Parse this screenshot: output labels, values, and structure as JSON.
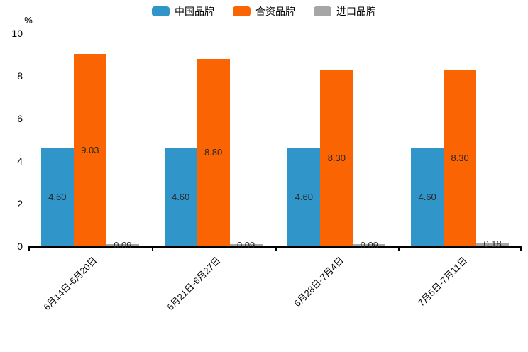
{
  "chart_data": {
    "type": "bar",
    "title": "",
    "categories": [
      "6月14日-6月20日",
      "6月21日-6月27日",
      "6月28日-7月4日",
      "7月5日-7月11日"
    ],
    "series": [
      {
        "name": "中国品牌",
        "color": "#3095c8",
        "values": [
          4.6,
          4.6,
          4.6,
          4.6
        ],
        "labels": [
          "4.60",
          "4.60",
          "4.60",
          "4.60"
        ]
      },
      {
        "name": "合资品牌",
        "color": "#fa6402",
        "values": [
          9.03,
          8.8,
          8.3,
          8.3
        ],
        "labels": [
          "9.03",
          "8.80",
          "8.30",
          "8.30"
        ]
      },
      {
        "name": "进口品牌",
        "color": "#a6a6a6",
        "values": [
          0.09,
          0.09,
          0.09,
          0.18
        ],
        "labels": [
          "0.09",
          "0.09",
          "0.09",
          "0.18"
        ]
      }
    ],
    "xlabel": "",
    "ylabel": "%",
    "yticks": [
      0,
      2,
      4,
      6,
      8,
      10
    ],
    "ylim": [
      0,
      10
    ],
    "grid": false,
    "legend_position": "top",
    "bar_label_position": "inside-center",
    "value_label_color": "#262626",
    "axis_color": "#000000"
  }
}
